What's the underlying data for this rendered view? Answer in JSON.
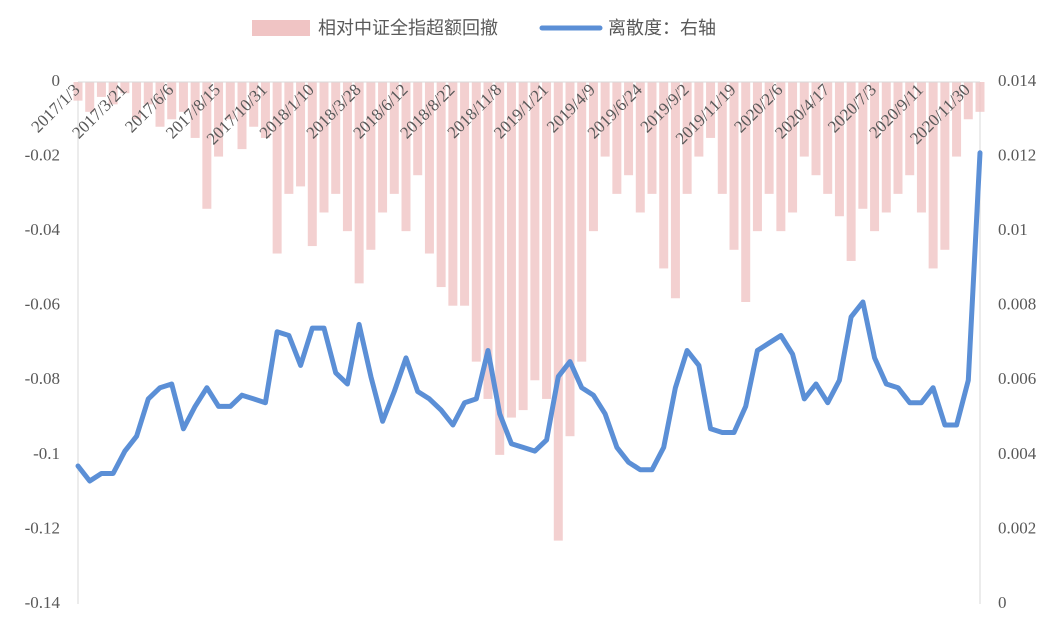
{
  "chart_data": {
    "type": "bar-line",
    "categories": [
      "2017/1/3",
      null,
      null,
      null,
      "2017/3/21",
      null,
      null,
      null,
      "2017/6/6",
      null,
      null,
      null,
      "2017/8/15",
      null,
      null,
      null,
      "2017/10/31",
      null,
      null,
      null,
      "2018/1/10",
      null,
      null,
      null,
      "2018/3/28",
      null,
      null,
      null,
      "2018/6/12",
      null,
      null,
      null,
      "2018/8/22",
      null,
      null,
      null,
      "2018/11/8",
      null,
      null,
      null,
      "2019/1/21",
      null,
      null,
      null,
      "2019/4/9",
      null,
      null,
      null,
      "2019/6/24",
      null,
      null,
      null,
      "2019/9/2",
      null,
      null,
      null,
      "2019/11/19",
      null,
      null,
      null,
      "2020/2/6",
      null,
      null,
      null,
      "2020/4/17",
      null,
      null,
      null,
      "2020/7/3",
      null,
      null,
      null,
      "2020/9/11",
      null,
      null,
      null,
      "2020/11/30",
      null
    ],
    "series": [
      {
        "name": "相对中证全指超额回撤",
        "color": "#f0c4c4",
        "kind": "bar",
        "axis": "y",
        "values": [
          -0.005,
          -0.008,
          -0.004,
          -0.006,
          -0.003,
          -0.01,
          -0.006,
          -0.012,
          -0.01,
          -0.008,
          -0.015,
          -0.034,
          -0.02,
          -0.01,
          -0.018,
          -0.012,
          -0.015,
          -0.046,
          -0.03,
          -0.028,
          -0.044,
          -0.035,
          -0.03,
          -0.04,
          -0.054,
          -0.045,
          -0.035,
          -0.03,
          -0.04,
          -0.025,
          -0.046,
          -0.055,
          -0.06,
          -0.06,
          -0.075,
          -0.085,
          -0.1,
          -0.09,
          -0.088,
          -0.08,
          -0.085,
          -0.123,
          -0.095,
          -0.075,
          -0.04,
          -0.02,
          -0.03,
          -0.025,
          -0.035,
          -0.03,
          -0.05,
          -0.058,
          -0.03,
          -0.02,
          -0.015,
          -0.03,
          -0.045,
          -0.059,
          -0.04,
          -0.03,
          -0.04,
          -0.035,
          -0.02,
          -0.025,
          -0.03,
          -0.036,
          -0.048,
          -0.034,
          -0.04,
          -0.035,
          -0.03,
          -0.025,
          -0.035,
          -0.05,
          -0.045,
          -0.02,
          -0.01,
          -0.008
        ]
      },
      {
        "name": "离散度：右轴",
        "color": "#5b8fd6",
        "kind": "line",
        "axis": "y2",
        "values": [
          0.0037,
          0.0033,
          0.0035,
          0.0035,
          0.0041,
          0.0045,
          0.0055,
          0.0058,
          0.0059,
          0.0047,
          0.0053,
          0.0058,
          0.0053,
          0.0053,
          0.0056,
          0.0055,
          0.0054,
          0.0073,
          0.0072,
          0.0064,
          0.0074,
          0.0074,
          0.0062,
          0.0059,
          0.0075,
          0.0061,
          0.0049,
          0.0057,
          0.0066,
          0.0057,
          0.0055,
          0.0052,
          0.0048,
          0.0054,
          0.0055,
          0.0068,
          0.0051,
          0.0043,
          0.0042,
          0.0041,
          0.0044,
          0.0061,
          0.0065,
          0.0058,
          0.0056,
          0.0051,
          0.0042,
          0.0038,
          0.0036,
          0.0036,
          0.0042,
          0.0058,
          0.0068,
          0.0064,
          0.0047,
          0.0046,
          0.0046,
          0.0053,
          0.0068,
          0.007,
          0.0072,
          0.0067,
          0.0055,
          0.0059,
          0.0054,
          0.006,
          0.0077,
          0.0081,
          0.0066,
          0.0059,
          0.0058,
          0.0054,
          0.0054,
          0.0058,
          0.0048,
          0.0048,
          0.006,
          0.0121
        ]
      }
    ],
    "ylim": [
      -0.14,
      0
    ],
    "yticks": [
      0,
      -0.02,
      -0.04,
      -0.06,
      -0.08,
      -0.1,
      -0.12,
      -0.14
    ],
    "y2lim": [
      0,
      0.014
    ],
    "y2ticks": [
      0,
      0.002,
      0.004,
      0.006,
      0.008,
      0.01,
      0.012,
      0.014
    ],
    "legend": "top"
  }
}
